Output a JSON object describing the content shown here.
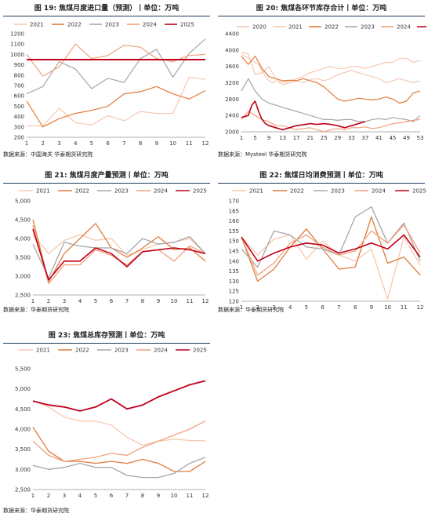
{
  "colors": {
    "2020": "#f7c8b0",
    "2021": "#f7c8b0",
    "2022": "#e07b3a",
    "2023": "#a6a6a6",
    "2024": "#f2a07a",
    "2025": "#c0001a"
  },
  "chart_data": [
    {
      "id": "c19",
      "type": "line",
      "title": "图 19: 焦煤月度进口量（预测）丨单位：万吨",
      "source": "数据来源：中国海关  华泰期货研究院",
      "x": [
        1,
        2,
        3,
        4,
        5,
        6,
        7,
        8,
        9,
        10,
        11,
        12
      ],
      "xticks": [
        "1",
        "2",
        "3",
        "4",
        "5",
        "6",
        "7",
        "8",
        "9",
        "10",
        "11",
        "12"
      ],
      "ylim": [
        200,
        1200
      ],
      "yticks": [
        200,
        300,
        400,
        500,
        600,
        700,
        800,
        900,
        1000,
        1100,
        1200
      ],
      "grid": false,
      "legend_position": "top",
      "series": [
        {
          "name": "2021",
          "color_key": "2021",
          "values": [
            310,
            310,
            480,
            340,
            320,
            410,
            360,
            450,
            430,
            430,
            780,
            760
          ]
        },
        {
          "name": "2022",
          "color_key": "2022",
          "values": [
            550,
            300,
            380,
            430,
            460,
            500,
            620,
            640,
            690,
            620,
            570,
            650
          ]
        },
        {
          "name": "2023",
          "color_key": "2023",
          "values": [
            620,
            690,
            930,
            860,
            670,
            770,
            730,
            960,
            1050,
            780,
            1010,
            1150
          ]
        },
        {
          "name": "2024",
          "color_key": "2024",
          "values": [
            1000,
            790,
            880,
            1100,
            960,
            990,
            1090,
            1070,
            960,
            930,
            990,
            1000
          ]
        },
        {
          "name": "2025",
          "color_key": "2025",
          "values": [
            950,
            950,
            950,
            950,
            950,
            950,
            950,
            950,
            950,
            950,
            950,
            950
          ]
        }
      ]
    },
    {
      "id": "c20",
      "type": "line",
      "title": "图 20: 焦煤各环节库存合计丨单位：万吨",
      "source": "数据来源：Mysteel  华泰期货研究院",
      "x_range": [
        1,
        53
      ],
      "xticks": [
        "1",
        "5",
        "9",
        "13",
        "17",
        "21",
        "25",
        "29",
        "33",
        "37",
        "41",
        "45",
        "49",
        "53"
      ],
      "xtick_values": [
        1,
        5,
        9,
        13,
        17,
        21,
        25,
        29,
        33,
        37,
        41,
        45,
        49,
        53
      ],
      "ylim": [
        2000,
        4400
      ],
      "yticks": [
        2000,
        2400,
        2800,
        3200,
        3600,
        4000,
        4400
      ],
      "grid": false,
      "legend_position": "top",
      "series": [
        {
          "name": "2020",
          "color_key": "2020",
          "x": [
            1,
            3,
            5,
            7,
            9,
            11,
            13,
            15,
            17,
            19,
            21,
            23,
            25,
            27,
            29,
            31,
            33,
            35,
            37,
            39,
            41,
            43,
            45,
            47,
            49,
            51,
            53
          ],
          "values": [
            3950,
            3900,
            3400,
            3450,
            3600,
            3300,
            3200,
            3250,
            3300,
            3350,
            3450,
            3500,
            3550,
            3600,
            3550,
            3550,
            3600,
            3600,
            3550,
            3600,
            3650,
            3700,
            3700,
            3800,
            3800,
            3700,
            3750
          ]
        },
        {
          "name": "2021",
          "color_key": "2021",
          "x": [
            1,
            2,
            3,
            4,
            5,
            6,
            7,
            8,
            9,
            10,
            11,
            12,
            13,
            15,
            17,
            19,
            21,
            23,
            25,
            27,
            29,
            31,
            33,
            35,
            37,
            39,
            41,
            43,
            45,
            47,
            49,
            51,
            53
          ],
          "values": [
            3900,
            3850,
            3800,
            3750,
            3700,
            3650,
            3500,
            3350,
            3250,
            3200,
            3250,
            3200,
            3150,
            3200,
            3250,
            3200,
            3280,
            3300,
            3250,
            3300,
            3400,
            3450,
            3500,
            3450,
            3400,
            3350,
            3300,
            3200,
            3250,
            3300,
            3250,
            3200,
            3250
          ]
        },
        {
          "name": "2022",
          "color_key": "2022",
          "x": [
            1,
            3,
            5,
            7,
            9,
            11,
            13,
            15,
            17,
            19,
            21,
            23,
            25,
            27,
            29,
            31,
            33,
            35,
            37,
            39,
            41,
            43,
            45,
            47,
            49,
            51,
            53
          ],
          "values": [
            3850,
            3650,
            3850,
            3550,
            3350,
            3300,
            3250,
            3260,
            3250,
            3300,
            3250,
            3200,
            3100,
            2950,
            2800,
            2750,
            2780,
            2820,
            2800,
            2780,
            2800,
            2850,
            2800,
            2700,
            2750,
            2950,
            3000
          ]
        },
        {
          "name": "2023",
          "color_key": "2023",
          "x": [
            1,
            3,
            5,
            7,
            9,
            11,
            13,
            15,
            17,
            19,
            21,
            23,
            25,
            27,
            29,
            31,
            33,
            35,
            37,
            39,
            41,
            43,
            45,
            47,
            49,
            51,
            53
          ],
          "values": [
            3000,
            3300,
            3000,
            2800,
            2700,
            2650,
            2600,
            2550,
            2500,
            2450,
            2400,
            2350,
            2300,
            2300,
            2280,
            2300,
            2300,
            2250,
            2250,
            2300,
            2320,
            2300,
            2350,
            2320,
            2300,
            2250,
            2400
          ]
        },
        {
          "name": "2024",
          "color_key": "2024",
          "x": [
            1,
            3,
            5,
            7,
            9,
            11,
            13,
            15,
            17,
            19,
            21,
            23,
            25,
            27,
            29,
            31,
            33,
            35,
            37,
            39,
            41,
            43,
            45,
            47,
            49,
            51,
            53
          ],
          "values": [
            2300,
            2500,
            2400,
            2300,
            2250,
            2150,
            2150,
            2100,
            2050,
            2080,
            2100,
            2050,
            2000,
            2050,
            2080,
            2050,
            2100,
            2100,
            2120,
            2080,
            2100,
            2150,
            2200,
            2220,
            2250,
            2280,
            2300
          ]
        },
        {
          "name": "2025",
          "color_key": "2025",
          "x": [
            1,
            3,
            4,
            5,
            6,
            7,
            8,
            9,
            11,
            13,
            15,
            17,
            19,
            21,
            23,
            25,
            27,
            29,
            31,
            33,
            35,
            37
          ],
          "values": [
            2350,
            2400,
            2650,
            2750,
            2500,
            2300,
            2200,
            2150,
            2100,
            2050,
            2100,
            2150,
            2170,
            2200,
            2180,
            2200,
            2180,
            2150,
            2100,
            2150,
            2200,
            2250
          ]
        }
      ]
    },
    {
      "id": "c21",
      "type": "line",
      "title": "图 21: 焦煤月度产量预测丨单位：万吨",
      "source": "数据来源：华泰期货研究院",
      "x": [
        1,
        2,
        3,
        4,
        5,
        6,
        7,
        8,
        9,
        10,
        11,
        12
      ],
      "xticks": [
        "1",
        "2",
        "3",
        "4",
        "5",
        "6",
        "7",
        "8",
        "9",
        "10",
        "11",
        "12"
      ],
      "ylim": [
        2500,
        5000
      ],
      "yticks": [
        "2,500",
        "3,000",
        "3,500",
        "4,000",
        "4,500",
        "5,000"
      ],
      "ytick_values": [
        2500,
        3000,
        3500,
        4000,
        4500,
        5000
      ],
      "grid": false,
      "legend_position": "top",
      "series": [
        {
          "name": "2021",
          "color_key": "2021",
          "values": [
            4100,
            3600,
            3950,
            4100,
            3950,
            4000,
            3550,
            3700,
            3850,
            3900,
            4000,
            3600
          ]
        },
        {
          "name": "2022",
          "color_key": "2022",
          "values": [
            4500,
            2850,
            3600,
            4000,
            4400,
            3750,
            3500,
            3750,
            4050,
            3700,
            3750,
            3400
          ]
        },
        {
          "name": "2023",
          "color_key": "2023",
          "values": [
            3850,
            2950,
            3900,
            3800,
            3750,
            3750,
            3600,
            4000,
            3850,
            3900,
            4050,
            3600
          ]
        },
        {
          "name": "2024",
          "color_key": "2024",
          "values": [
            4350,
            2800,
            3300,
            3300,
            3700,
            3550,
            3300,
            3650,
            3700,
            3400,
            3800,
            3600
          ]
        },
        {
          "name": "2025",
          "color_key": "2025",
          "values": [
            4250,
            2900,
            3400,
            3400,
            3750,
            3600,
            3250,
            3650,
            3700,
            3750,
            3700,
            3600
          ]
        }
      ]
    },
    {
      "id": "c22",
      "type": "line",
      "title": "图 22: 焦煤日均消费预测丨单位：万吨",
      "source": "数据来源：华泰期货研究院",
      "x": [
        1,
        2,
        3,
        4,
        5,
        6,
        7,
        8,
        9,
        10,
        11,
        12
      ],
      "xticks": [
        "1",
        "2",
        "3",
        "4",
        "5",
        "6",
        "7",
        "8",
        "9",
        "10",
        "11",
        "12"
      ],
      "ylim": [
        120,
        170
      ],
      "yticks": [
        120,
        125,
        130,
        135,
        140,
        145,
        150,
        155,
        160,
        165,
        170
      ],
      "grid": false,
      "legend_position": "top",
      "series": [
        {
          "name": "2021",
          "color_key": "2021",
          "values": [
            152,
            143,
            151,
            153,
            141,
            150,
            143,
            140,
            146,
            121,
            152,
            138
          ]
        },
        {
          "name": "2022",
          "color_key": "2022",
          "values": [
            152,
            130,
            136,
            147,
            156,
            146,
            136,
            137,
            162,
            139,
            142,
            133
          ]
        },
        {
          "name": "2023",
          "color_key": "2023",
          "values": [
            146,
            137,
            155,
            153,
            147,
            146,
            143,
            162,
            167,
            149,
            159,
            140
          ]
        },
        {
          "name": "2024",
          "color_key": "2024",
          "values": [
            152,
            133,
            139,
            149,
            153,
            147,
            143,
            145,
            155,
            149,
            158,
            144
          ]
        },
        {
          "name": "2025",
          "color_key": "2025",
          "values": [
            152,
            140,
            144,
            147,
            149,
            148,
            144,
            146,
            149,
            146,
            153,
            142
          ]
        }
      ]
    },
    {
      "id": "c23",
      "type": "line",
      "title": "图 23: 焦煤总库存预测丨单位：万吨",
      "source": "数据来源：华泰期货研究院",
      "x": [
        1,
        2,
        3,
        4,
        5,
        6,
        7,
        8,
        9,
        10,
        11,
        12
      ],
      "xticks": [
        "1",
        "2",
        "3",
        "4",
        "5",
        "6",
        "7",
        "8",
        "9",
        "10",
        "11",
        "12"
      ],
      "ylim": [
        2500,
        5500
      ],
      "yticks": [
        "2,500",
        "3,000",
        "3,500",
        "4,000",
        "4,500",
        "5,000",
        "5,500"
      ],
      "ytick_values": [
        2500,
        3000,
        3500,
        4000,
        4500,
        5000,
        5500
      ],
      "grid": false,
      "legend_position": "top",
      "series": [
        {
          "name": "2021",
          "color_key": "2021",
          "values": [
            4700,
            4550,
            4300,
            4200,
            4200,
            4100,
            3800,
            3600,
            3700,
            3750,
            3720,
            3710
          ]
        },
        {
          "name": "2022",
          "color_key": "2022",
          "values": [
            4050,
            3450,
            3200,
            3200,
            3150,
            3200,
            3150,
            3250,
            3150,
            2950,
            2950,
            3200
          ]
        },
        {
          "name": "2023",
          "color_key": "2023",
          "values": [
            3100,
            3000,
            3050,
            3150,
            3050,
            3050,
            2850,
            2800,
            2800,
            2900,
            3150,
            3300
          ]
        },
        {
          "name": "2024",
          "color_key": "2024",
          "values": [
            3700,
            3350,
            3200,
            3250,
            3300,
            3400,
            3350,
            3550,
            3700,
            3850,
            4000,
            4200
          ]
        },
        {
          "name": "2025",
          "color_key": "2025",
          "values": [
            4700,
            4600,
            4550,
            4450,
            4550,
            4750,
            4500,
            4600,
            4800,
            4950,
            5100,
            5200
          ]
        }
      ]
    }
  ]
}
